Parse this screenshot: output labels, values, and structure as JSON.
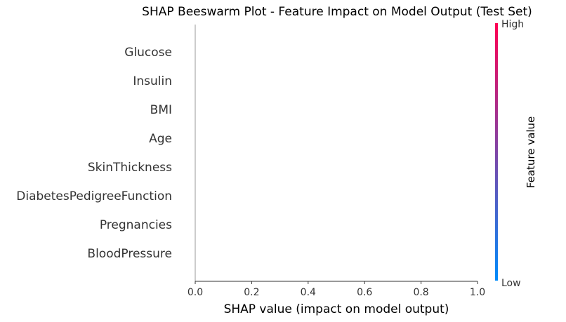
{
  "chart_data": {
    "type": "scatter",
    "title": "SHAP Beeswarm Plot - Feature Impact on Model Output (Test Set)",
    "xlabel": "SHAP value (impact on model output)",
    "ylabel": "",
    "features": [
      "Glucose",
      "Insulin",
      "BMI",
      "Age",
      "SkinThickness",
      "DiabetesPedigreeFunction",
      "Pregnancies",
      "BloodPressure"
    ],
    "xlim": [
      0,
      1
    ],
    "xticks": [
      0.0,
      0.2,
      0.4,
      0.6,
      0.8,
      1.0
    ],
    "xtick_labels": [
      "0.0",
      "0.2",
      "0.4",
      "0.6",
      "0.8",
      "1.0"
    ],
    "points": [],
    "grid": false,
    "colorbar": {
      "label": "Feature value",
      "high_label": "High",
      "low_label": "Low",
      "high_color": "#ff0052",
      "low_color": "#008bfb"
    }
  }
}
